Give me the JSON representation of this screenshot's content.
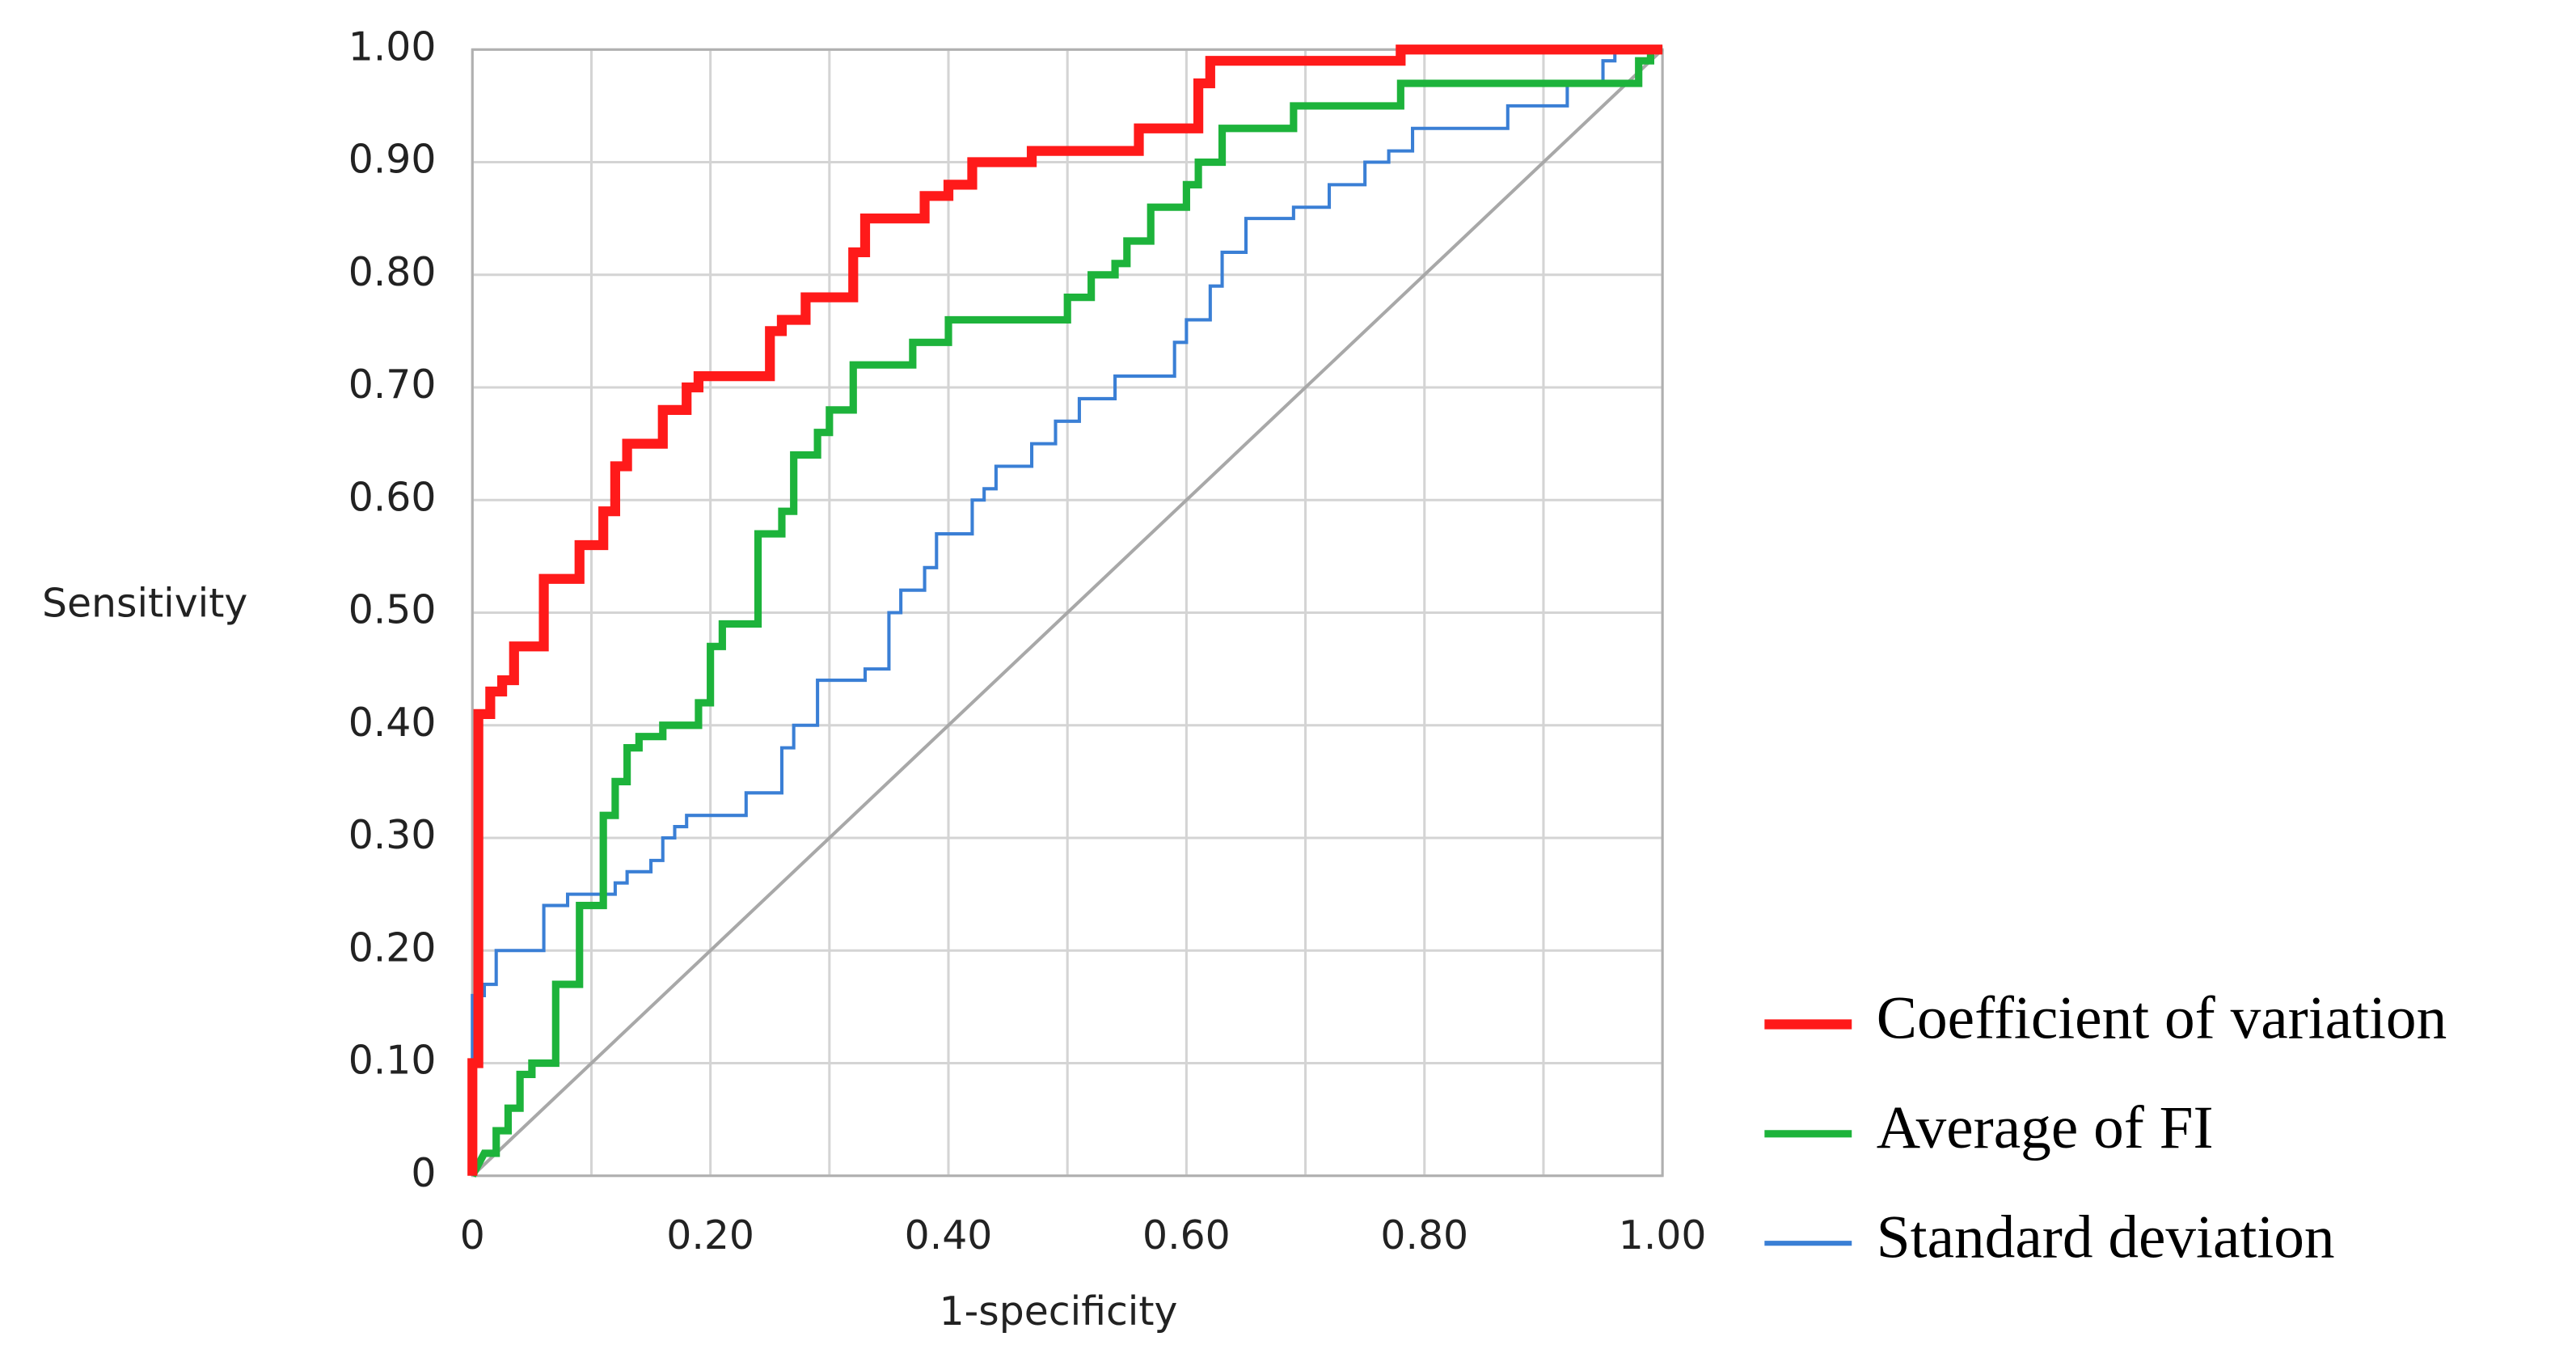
{
  "chart_data": {
    "type": "line",
    "x_label": "1-specificity",
    "y_label": "Sensitivity",
    "xlim": [
      0,
      1
    ],
    "ylim": [
      0,
      1
    ],
    "xticks": [
      0,
      {
        "value": 0.2,
        "label": "0.20"
      },
      {
        "value": 0.4,
        "label": "0.40"
      },
      {
        "value": 0.6,
        "label": "0.60"
      },
      {
        "value": 0.8,
        "label": "0.80"
      },
      {
        "value": 1,
        "label": "1.00"
      }
    ],
    "yticks": [
      0,
      {
        "value": 0.1,
        "label": "0.10"
      },
      {
        "value": 0.2,
        "label": "0.20"
      },
      {
        "value": 0.3,
        "label": "0.30"
      },
      {
        "value": 0.4,
        "label": "0.40"
      },
      {
        "value": 0.5,
        "label": "0.50"
      },
      {
        "value": 0.6,
        "label": "0.60"
      },
      {
        "value": 0.7,
        "label": "0.70"
      },
      {
        "value": 0.8,
        "label": "0.80"
      },
      {
        "value": 0.9,
        "label": "0.90"
      },
      {
        "value": 1,
        "label": "1.00"
      }
    ],
    "x_minor_grid": [
      0.1,
      0.3,
      0.5,
      0.7,
      0.9
    ],
    "grid": true,
    "legend": "lower right",
    "series": [
      {
        "name": "Coefficient of variation",
        "color": "#ff1a1a",
        "width": 6,
        "x": [
          0,
          0,
          0.005,
          0.005,
          0.015,
          0.015,
          0.025,
          0.025,
          0.035,
          0.035,
          0.06,
          0.06,
          0.09,
          0.09,
          0.11,
          0.11,
          0.12,
          0.12,
          0.13,
          0.13,
          0.16,
          0.16,
          0.18,
          0.18,
          0.19,
          0.19,
          0.25,
          0.25,
          0.26,
          0.26,
          0.28,
          0.28,
          0.32,
          0.32,
          0.33,
          0.33,
          0.38,
          0.38,
          0.4,
          0.4,
          0.42,
          0.42,
          0.47,
          0.47,
          0.56,
          0.56,
          0.61,
          0.61,
          0.62,
          0.62,
          0.78,
          0.78,
          1.0
        ],
        "values": [
          0,
          0.1,
          0.1,
          0.41,
          0.41,
          0.43,
          0.43,
          0.44,
          0.44,
          0.47,
          0.47,
          0.53,
          0.53,
          0.56,
          0.56,
          0.59,
          0.59,
          0.63,
          0.63,
          0.65,
          0.65,
          0.68,
          0.68,
          0.7,
          0.7,
          0.71,
          0.71,
          0.75,
          0.75,
          0.76,
          0.76,
          0.78,
          0.78,
          0.82,
          0.82,
          0.85,
          0.85,
          0.87,
          0.87,
          0.88,
          0.88,
          0.9,
          0.9,
          0.91,
          0.91,
          0.93,
          0.93,
          0.97,
          0.97,
          0.99,
          0.99,
          1.0,
          1.0
        ]
      },
      {
        "name": "Average of FI",
        "color": "#1db33b",
        "width": 4.5,
        "x": [
          0,
          0.01,
          0.02,
          0.02,
          0.03,
          0.03,
          0.04,
          0.04,
          0.05,
          0.05,
          0.07,
          0.07,
          0.09,
          0.09,
          0.11,
          0.11,
          0.12,
          0.12,
          0.13,
          0.13,
          0.14,
          0.14,
          0.16,
          0.16,
          0.19,
          0.19,
          0.2,
          0.2,
          0.21,
          0.21,
          0.24,
          0.24,
          0.26,
          0.26,
          0.27,
          0.27,
          0.29,
          0.29,
          0.3,
          0.3,
          0.32,
          0.32,
          0.37,
          0.37,
          0.4,
          0.4,
          0.5,
          0.5,
          0.52,
          0.52,
          0.54,
          0.54,
          0.55,
          0.55,
          0.57,
          0.57,
          0.6,
          0.6,
          0.61,
          0.61,
          0.63,
          0.63,
          0.69,
          0.69,
          0.78,
          0.78,
          0.98,
          0.98,
          0.99,
          0.99,
          1.0
        ],
        "values": [
          0,
          0.02,
          0.02,
          0.04,
          0.04,
          0.06,
          0.06,
          0.09,
          0.09,
          0.1,
          0.1,
          0.17,
          0.17,
          0.24,
          0.24,
          0.32,
          0.32,
          0.35,
          0.35,
          0.38,
          0.38,
          0.39,
          0.39,
          0.4,
          0.4,
          0.42,
          0.42,
          0.47,
          0.47,
          0.49,
          0.49,
          0.57,
          0.57,
          0.59,
          0.59,
          0.64,
          0.64,
          0.66,
          0.66,
          0.68,
          0.68,
          0.72,
          0.72,
          0.74,
          0.74,
          0.76,
          0.76,
          0.78,
          0.78,
          0.8,
          0.8,
          0.81,
          0.81,
          0.83,
          0.83,
          0.86,
          0.86,
          0.88,
          0.88,
          0.9,
          0.9,
          0.93,
          0.93,
          0.95,
          0.95,
          0.97,
          0.97,
          0.99,
          0.99,
          1.0,
          1.0
        ]
      },
      {
        "name": "Standard deviation",
        "color": "#3a7fd5",
        "width": 2,
        "x": [
          0,
          0,
          0.01,
          0.01,
          0.02,
          0.02,
          0.06,
          0.06,
          0.08,
          0.08,
          0.12,
          0.12,
          0.13,
          0.13,
          0.15,
          0.15,
          0.16,
          0.16,
          0.17,
          0.17,
          0.18,
          0.18,
          0.23,
          0.23,
          0.26,
          0.26,
          0.27,
          0.27,
          0.29,
          0.29,
          0.33,
          0.33,
          0.35,
          0.35,
          0.36,
          0.36,
          0.38,
          0.38,
          0.39,
          0.39,
          0.42,
          0.42,
          0.43,
          0.43,
          0.44,
          0.44,
          0.47,
          0.47,
          0.49,
          0.49,
          0.51,
          0.51,
          0.54,
          0.54,
          0.59,
          0.59,
          0.6,
          0.6,
          0.62,
          0.62,
          0.63,
          0.63,
          0.65,
          0.65,
          0.69,
          0.69,
          0.72,
          0.72,
          0.75,
          0.75,
          0.77,
          0.77,
          0.79,
          0.79,
          0.87,
          0.87,
          0.92,
          0.92,
          0.95,
          0.95,
          0.96,
          0.96,
          1.0
        ],
        "values": [
          0,
          0.16,
          0.16,
          0.17,
          0.17,
          0.2,
          0.2,
          0.24,
          0.24,
          0.25,
          0.25,
          0.26,
          0.26,
          0.27,
          0.27,
          0.28,
          0.28,
          0.3,
          0.3,
          0.31,
          0.31,
          0.32,
          0.32,
          0.34,
          0.34,
          0.38,
          0.38,
          0.4,
          0.4,
          0.44,
          0.44,
          0.45,
          0.45,
          0.5,
          0.5,
          0.52,
          0.52,
          0.54,
          0.54,
          0.57,
          0.57,
          0.6,
          0.6,
          0.61,
          0.61,
          0.63,
          0.63,
          0.65,
          0.65,
          0.67,
          0.67,
          0.69,
          0.69,
          0.71,
          0.71,
          0.74,
          0.74,
          0.76,
          0.76,
          0.79,
          0.79,
          0.82,
          0.82,
          0.85,
          0.85,
          0.86,
          0.86,
          0.88,
          0.88,
          0.9,
          0.9,
          0.91,
          0.91,
          0.93,
          0.93,
          0.95,
          0.95,
          0.97,
          0.97,
          0.99,
          0.99,
          1.0,
          1.0
        ]
      }
    ]
  }
}
